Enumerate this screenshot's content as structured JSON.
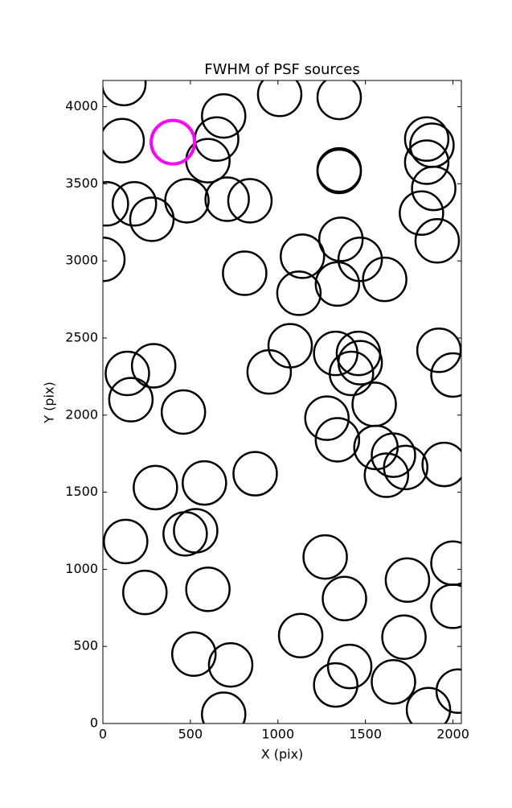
{
  "chart_data": {
    "type": "scatter",
    "title": "FWHM of PSF sources",
    "x_label": "X (pix)",
    "y_label": "Y (pix)",
    "xlim": [
      0,
      2048
    ],
    "ylim": [
      0,
      4170
    ],
    "xticks": [
      0,
      500,
      1000,
      1500,
      2000
    ],
    "yticks": [
      0,
      500,
      1000,
      1500,
      2000,
      2500,
      3000,
      3500,
      4000
    ],
    "grid": false,
    "series": [
      {
        "color": "#000000",
        "x": [
          120,
          110,
          690,
          650,
          600,
          1010,
          1350,
          1350,
          1350,
          1850,
          1880,
          1850,
          1890,
          1820,
          1910,
          20,
          180,
          280,
          480,
          710,
          840,
          0,
          810,
          1140,
          1360,
          1470,
          1610,
          1120,
          1340,
          1070,
          1330,
          1460,
          1470,
          1420,
          950,
          1920,
          2000,
          140,
          290,
          160,
          460,
          1280,
          1550,
          1340,
          1560,
          1660,
          1730,
          1620,
          1950,
          870,
          580,
          300,
          130,
          470,
          530,
          1270,
          2000,
          1740,
          240,
          600,
          1380,
          2000,
          1130,
          1720,
          520,
          730,
          1410,
          1330,
          1660,
          2030,
          1860,
          690
        ],
        "values": [
          4150,
          3780,
          3940,
          3790,
          3650,
          4080,
          4060,
          3590,
          3580,
          3790,
          3750,
          3640,
          3470,
          3310,
          3130,
          3370,
          3370,
          3270,
          3390,
          3400,
          3390,
          3010,
          2920,
          3030,
          3140,
          3010,
          2880,
          2790,
          2850,
          2450,
          2400,
          2400,
          2340,
          2270,
          2280,
          2420,
          2260,
          2270,
          2320,
          2100,
          2020,
          1980,
          2070,
          1840,
          1790,
          1740,
          1660,
          1610,
          1680,
          1620,
          1560,
          1530,
          1180,
          1230,
          1250,
          1080,
          1040,
          930,
          850,
          870,
          810,
          760,
          570,
          560,
          450,
          380,
          370,
          250,
          270,
          210,
          90,
          60
        ]
      },
      {
        "color": "#ff00ff",
        "x": [
          400
        ],
        "values": [
          3770
        ]
      }
    ]
  }
}
